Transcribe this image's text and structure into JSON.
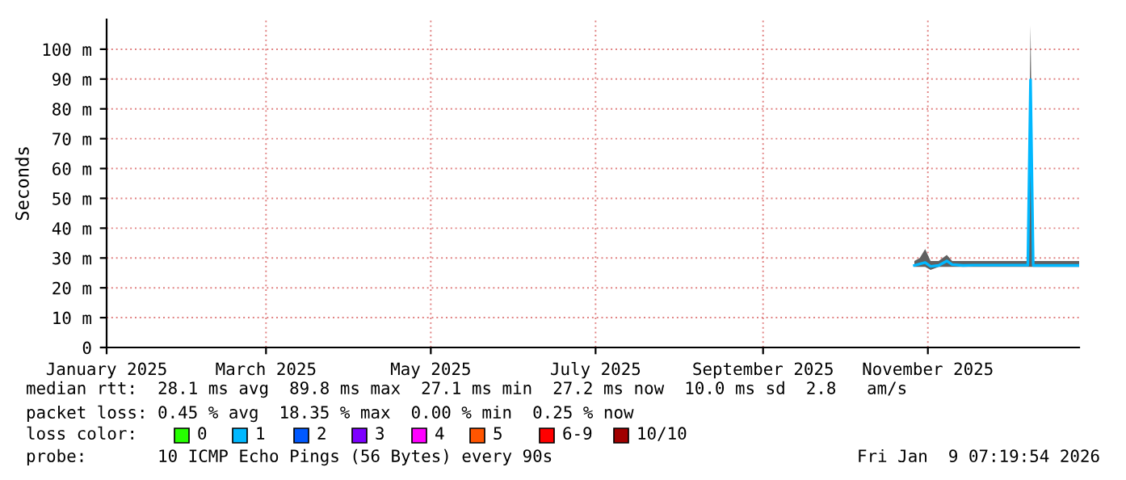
{
  "chart_data": {
    "type": "line",
    "ylabel": "Seconds",
    "xlim": [
      "2025-01-01",
      "2025-12-27"
    ],
    "xticks": [
      {
        "value": "2025-01-01",
        "label": "January 2025"
      },
      {
        "value": "2025-03-01",
        "label": "March 2025"
      },
      {
        "value": "2025-05-01",
        "label": "May 2025"
      },
      {
        "value": "2025-07-01",
        "label": "July 2025"
      },
      {
        "value": "2025-09-01",
        "label": "September 2025"
      },
      {
        "value": "2025-11-01",
        "label": "November 2025"
      }
    ],
    "ylim": [
      0,
      110
    ],
    "yticks": [
      0,
      {
        "value": 10,
        "label": "10 m"
      },
      {
        "value": 20,
        "label": "20 m"
      },
      {
        "value": 30,
        "label": "30 m"
      },
      {
        "value": 40,
        "label": "40 m"
      },
      {
        "value": 50,
        "label": "50 m"
      },
      {
        "value": 60,
        "label": "60 m"
      },
      {
        "value": 70,
        "label": "70 m"
      },
      {
        "value": 80,
        "label": "80 m"
      },
      {
        "value": 90,
        "label": "90 m"
      },
      {
        "value": 100,
        "label": "100 m"
      }
    ],
    "grid": true,
    "series": [
      {
        "color": "#00b8ff",
        "x": [
          "2025-10-27",
          "2025-10-29",
          "2025-10-31",
          "2025-11-02",
          "2025-11-05",
          "2025-11-08",
          "2025-11-10",
          "2025-11-14",
          "2025-11-18",
          "2025-11-22",
          "2025-11-26",
          "2025-11-30",
          "2025-12-04",
          "2025-12-08",
          "2025-12-09",
          "2025-12-10",
          "2025-12-14",
          "2025-12-18",
          "2025-12-22",
          "2025-12-27"
        ],
        "values": [
          27.5,
          28,
          28.5,
          27.2,
          27.5,
          29,
          27.8,
          27.5,
          27.6,
          27.6,
          27.6,
          27.6,
          27.6,
          27.6,
          89.8,
          27.5,
          27.5,
          27.5,
          27.5,
          27.5
        ],
        "lower": [
          27,
          27,
          27,
          26,
          27,
          27,
          27,
          27,
          27,
          27,
          27,
          27,
          27,
          27,
          27,
          27,
          27,
          27,
          27,
          27
        ],
        "upper": [
          29,
          30,
          33,
          29,
          29,
          31,
          29,
          29,
          29,
          29,
          29,
          29,
          29,
          29,
          108,
          29,
          29,
          29,
          29,
          29
        ]
      }
    ],
    "annotations": [
      "median rtt:  28.1 ms avg  89.8 ms max  27.1 ms min  27.2 ms now  10.0 ms sd  2.8   am/s",
      "packet loss: 0.45 % avg  18.35 % max  0.00 % min  0.25 % now",
      "loss color:",
      "0",
      "1",
      "2",
      "3",
      "4",
      "5",
      "6-9",
      "10/10",
      "probe:       10 ICMP Echo Pings (56 Bytes) every 90s",
      "Fri Jan  9 07:19:54 2026"
    ]
  }
}
